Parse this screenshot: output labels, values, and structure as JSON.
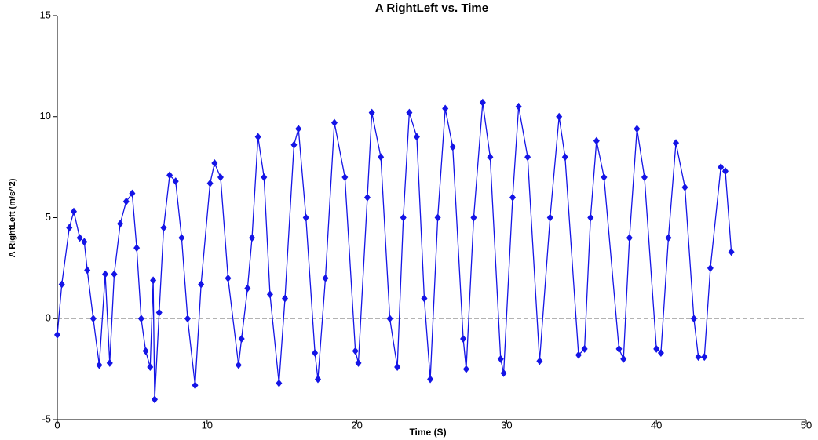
{
  "chart_data": {
    "type": "line",
    "title": "A RightLeft vs. Time",
    "xlabel": "Time (S)",
    "ylabel": "A RightLeft (m/s^2)",
    "x": [
      0,
      0.3,
      0.8,
      1.1,
      1.5,
      1.8,
      2.0,
      2.4,
      2.8,
      3.2,
      3.5,
      3.8,
      4.2,
      4.6,
      5.0,
      5.3,
      5.6,
      5.9,
      6.2,
      6.4,
      6.5,
      6.8,
      7.1,
      7.5,
      7.9,
      8.3,
      8.7,
      9.2,
      9.6,
      10.2,
      10.5,
      10.9,
      11.4,
      12.1,
      12.3,
      12.7,
      13.0,
      13.4,
      13.8,
      14.2,
      14.8,
      15.2,
      15.8,
      16.1,
      16.6,
      17.2,
      17.4,
      17.9,
      18.5,
      19.2,
      19.9,
      20.1,
      20.7,
      21.0,
      21.6,
      22.2,
      22.7,
      23.1,
      23.5,
      24.0,
      24.5,
      24.9,
      25.4,
      25.9,
      26.4,
      27.1,
      27.3,
      27.8,
      28.4,
      28.9,
      29.6,
      29.8,
      30.4,
      30.8,
      31.4,
      32.2,
      32.9,
      33.5,
      33.9,
      34.8,
      35.2,
      35.6,
      36.0,
      36.5,
      37.5,
      37.8,
      38.2,
      38.7,
      39.2,
      40.0,
      40.3,
      40.8,
      41.3,
      41.9,
      42.5,
      42.8,
      43.2,
      43.6,
      44.3,
      44.6,
      45.0
    ],
    "series": [
      {
        "name": "A RightLeft",
        "color": "#1414e6",
        "values": [
          -0.8,
          1.7,
          4.5,
          5.3,
          4.0,
          3.8,
          2.4,
          0,
          -2.3,
          2.2,
          -2.2,
          2.2,
          4.7,
          5.8,
          6.2,
          3.5,
          0,
          -1.6,
          -2.4,
          1.9,
          -4.0,
          0.3,
          4.5,
          7.1,
          6.8,
          4.0,
          0,
          -3.3,
          1.7,
          6.7,
          7.7,
          7.0,
          2.0,
          -2.3,
          -1.0,
          1.5,
          4.0,
          9.0,
          7.0,
          1.2,
          -3.2,
          1.0,
          8.6,
          9.4,
          5.0,
          -1.7,
          -3.0,
          2.0,
          9.7,
          7.0,
          -1.6,
          -2.2,
          6.0,
          10.2,
          8.0,
          0,
          -2.4,
          5.0,
          10.2,
          9.0,
          1.0,
          -3.0,
          5.0,
          10.4,
          8.5,
          -1.0,
          -2.5,
          5.0,
          10.7,
          8.0,
          -2.0,
          -2.7,
          6.0,
          10.5,
          8.0,
          -2.1,
          5.0,
          10.0,
          8.0,
          -1.8,
          -1.5,
          5.0,
          8.8,
          7.0,
          -1.5,
          -2.0,
          4.0,
          9.4,
          7.0,
          -1.5,
          -1.7,
          4.0,
          8.7,
          6.5,
          0,
          -1.9,
          -1.9,
          2.5,
          7.5,
          7.3,
          3.3
        ]
      }
    ],
    "xlim": [
      0,
      50
    ],
    "xticks": [
      0,
      10,
      20,
      30,
      40,
      50
    ],
    "ylim": [
      -5,
      15
    ],
    "yticks": [
      -5,
      0,
      5,
      10,
      15
    ]
  }
}
